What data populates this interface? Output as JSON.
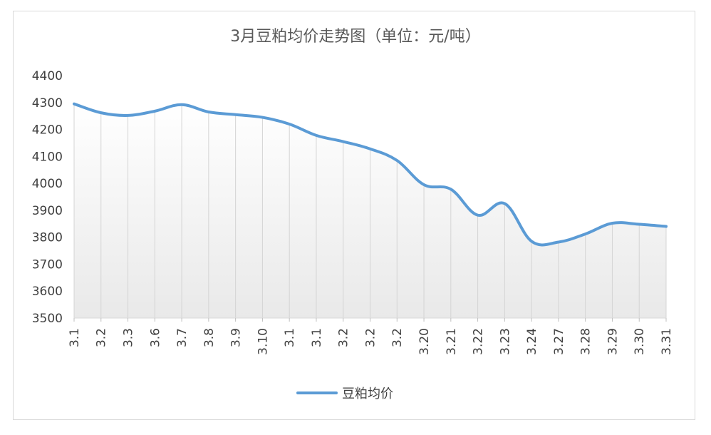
{
  "chart_data": {
    "type": "line",
    "title": "3月豆粕均价走势图（单位：元/吨）",
    "xlabel": "",
    "ylabel": "",
    "categories": [
      "3.1",
      "3.2",
      "3.3",
      "3.6",
      "3.7",
      "3.8",
      "3.9",
      "3.10",
      "3.1",
      "3.1",
      "3.2",
      "3.2",
      "3.2",
      "3.20",
      "3.21",
      "3.22",
      "3.23",
      "3.24",
      "3.27",
      "3.28",
      "3.29",
      "3.30",
      "3.31"
    ],
    "series": [
      {
        "name": "豆粕均价",
        "color": "#5b9bd5",
        "values": [
          4295,
          4262,
          4252,
          4268,
          4292,
          4265,
          4255,
          4245,
          4220,
          4178,
          4155,
          4128,
          4085,
          3995,
          3978,
          3882,
          3925,
          3785,
          3782,
          3812,
          3852,
          3848,
          3840
        ]
      }
    ],
    "ylim": [
      3500,
      4400
    ],
    "yticks": [
      3500,
      3600,
      3700,
      3800,
      3900,
      4000,
      4100,
      4200,
      4300,
      4400
    ],
    "grid": "vertical",
    "area_fill": "gradient",
    "legend": "bottom"
  }
}
